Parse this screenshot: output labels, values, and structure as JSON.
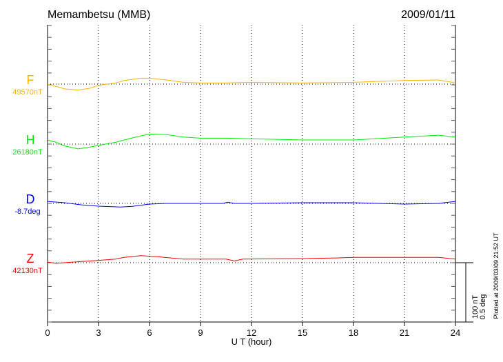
{
  "chart_data": {
    "type": "line",
    "title": "Memambetsu (MMB)",
    "date": "2009/01/11",
    "xlabel": "U T (hour)",
    "xlim": [
      0,
      24
    ],
    "xticks": [
      "0",
      "3",
      "6",
      "9",
      "12",
      "15",
      "18",
      "21",
      "24"
    ],
    "grid": true,
    "scale_bar": {
      "nT": "100 nT",
      "deg": "0.5 deg"
    },
    "footer": "Plotted at 2009/03/09 21:52 UT",
    "series": [
      {
        "name": "F",
        "baseline": "49570nT",
        "unit": "nT",
        "color": "#ffb400",
        "x": [
          0,
          0.5,
          1,
          1.8,
          2.5,
          3,
          4,
          4.5,
          5.5,
          6,
          7,
          8,
          9,
          10.5,
          12,
          15,
          18,
          21,
          23,
          24
        ],
        "y": [
          0,
          -4,
          -8,
          -10,
          -7,
          -2,
          2,
          6,
          10,
          10,
          7,
          3,
          2,
          2,
          3,
          2,
          3,
          6,
          7,
          2
        ]
      },
      {
        "name": "H",
        "baseline": "26180nT",
        "unit": "nT",
        "color": "#00ee00",
        "x": [
          0,
          0.5,
          1,
          1.8,
          2.5,
          3,
          4,
          4.5,
          5.5,
          6,
          7,
          8,
          9,
          10.5,
          12,
          15,
          18,
          21,
          23,
          24
        ],
        "y": [
          7,
          3,
          -3,
          -8,
          -5,
          -2,
          3,
          7,
          14,
          17,
          16,
          12,
          10,
          10,
          9,
          7,
          7,
          12,
          15,
          12
        ]
      },
      {
        "name": "D",
        "baseline": "-8.7deg",
        "unit": "deg",
        "color": "#0000ff",
        "x": [
          0,
          1,
          2,
          3,
          4.3,
          5,
          6,
          7,
          9,
          10.3,
          10.6,
          11,
          12,
          15,
          18,
          21,
          23,
          24
        ],
        "y": [
          0.017,
          0.006,
          -0.012,
          -0.023,
          -0.03,
          -0.025,
          -0.006,
          0,
          0,
          0,
          0.01,
          0,
          0,
          0.006,
          0.006,
          -0.006,
          0,
          0.017
        ]
      },
      {
        "name": "Z",
        "baseline": "42130nT",
        "unit": "nT",
        "color": "#ff0000",
        "x": [
          0,
          0.5,
          2,
          3,
          4,
          4.5,
          5.5,
          6.5,
          8,
          10.5,
          11,
          11.5,
          15,
          17,
          18,
          21,
          23,
          24
        ],
        "y": [
          1,
          -1,
          2,
          4,
          6,
          9,
          12,
          10,
          6,
          6,
          3,
          6,
          7,
          8,
          9,
          9,
          9,
          6
        ]
      }
    ]
  }
}
